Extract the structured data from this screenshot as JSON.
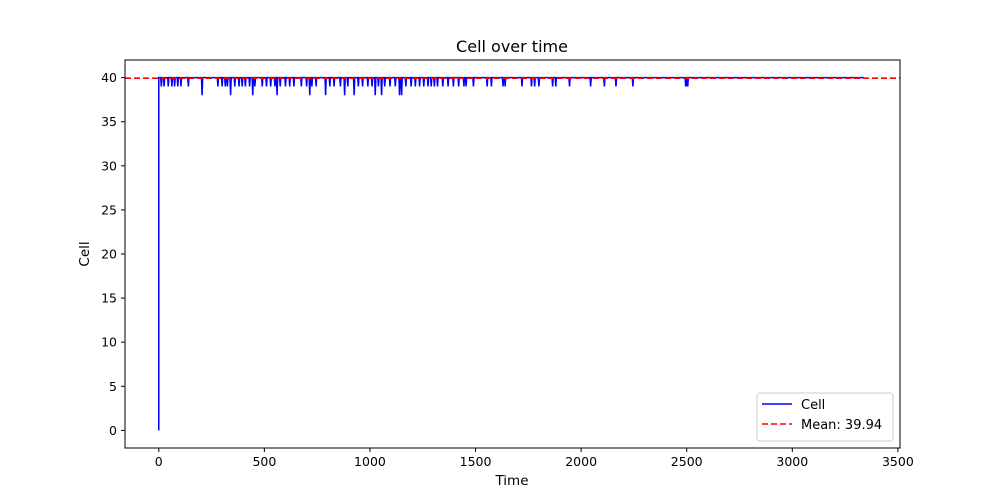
{
  "chart_data": {
    "type": "line",
    "title": "Cell over time",
    "xlabel": "Time",
    "ylabel": "Cell",
    "xlim": [
      -160,
      3510
    ],
    "ylim": [
      -2.0,
      42.0
    ],
    "xticks": [
      0,
      500,
      1000,
      1500,
      2000,
      2500,
      3000,
      3500
    ],
    "yticks": [
      0,
      5,
      10,
      15,
      20,
      25,
      30,
      35,
      40
    ],
    "grid": false,
    "legend_position": "lower right",
    "series": [
      {
        "name": "Cell",
        "color": "#0000ff",
        "style": "solid",
        "x_start": 0,
        "x_end": 3340,
        "baseline": 40,
        "initial_value": 0,
        "dips": [
          [
            12,
            39
          ],
          [
            25,
            39
          ],
          [
            45,
            39
          ],
          [
            62,
            39
          ],
          [
            75,
            39
          ],
          [
            90,
            39
          ],
          [
            105,
            39
          ],
          [
            140,
            39
          ],
          [
            205,
            38
          ],
          [
            280,
            39
          ],
          [
            300,
            39
          ],
          [
            315,
            39
          ],
          [
            325,
            39
          ],
          [
            340,
            38
          ],
          [
            360,
            39
          ],
          [
            380,
            39
          ],
          [
            395,
            39
          ],
          [
            410,
            39
          ],
          [
            430,
            39
          ],
          [
            445,
            38
          ],
          [
            455,
            39
          ],
          [
            490,
            39
          ],
          [
            510,
            39
          ],
          [
            530,
            39
          ],
          [
            550,
            39
          ],
          [
            560,
            38
          ],
          [
            575,
            39
          ],
          [
            600,
            39
          ],
          [
            620,
            39
          ],
          [
            640,
            39
          ],
          [
            675,
            39
          ],
          [
            700,
            39
          ],
          [
            715,
            38
          ],
          [
            725,
            39
          ],
          [
            745,
            39
          ],
          [
            790,
            38
          ],
          [
            810,
            39
          ],
          [
            830,
            39
          ],
          [
            860,
            39
          ],
          [
            880,
            38
          ],
          [
            895,
            39
          ],
          [
            925,
            38
          ],
          [
            945,
            39
          ],
          [
            965,
            39
          ],
          [
            990,
            39
          ],
          [
            1010,
            39
          ],
          [
            1025,
            38
          ],
          [
            1040,
            39
          ],
          [
            1055,
            38
          ],
          [
            1070,
            39
          ],
          [
            1095,
            39
          ],
          [
            1120,
            39
          ],
          [
            1140,
            38
          ],
          [
            1150,
            38
          ],
          [
            1170,
            39
          ],
          [
            1195,
            39
          ],
          [
            1215,
            39
          ],
          [
            1235,
            39
          ],
          [
            1255,
            39
          ],
          [
            1275,
            39
          ],
          [
            1290,
            39
          ],
          [
            1305,
            39
          ],
          [
            1320,
            39
          ],
          [
            1345,
            39
          ],
          [
            1370,
            39
          ],
          [
            1395,
            39
          ],
          [
            1420,
            39
          ],
          [
            1445,
            39
          ],
          [
            1455,
            39
          ],
          [
            1490,
            39
          ],
          [
            1555,
            39
          ],
          [
            1575,
            39
          ],
          [
            1630,
            39
          ],
          [
            1640,
            39
          ],
          [
            1720,
            39
          ],
          [
            1765,
            39
          ],
          [
            1780,
            39
          ],
          [
            1800,
            39
          ],
          [
            1865,
            39
          ],
          [
            1880,
            39
          ],
          [
            1945,
            39
          ],
          [
            2045,
            39
          ],
          [
            2110,
            39
          ],
          [
            2165,
            39
          ],
          [
            2245,
            39
          ],
          [
            2495,
            39
          ],
          [
            2500,
            39
          ],
          [
            2505,
            39
          ]
        ]
      },
      {
        "name": "Mean: 39.94",
        "color": "#ff0000",
        "style": "dashed",
        "value": 39.94
      }
    ]
  }
}
